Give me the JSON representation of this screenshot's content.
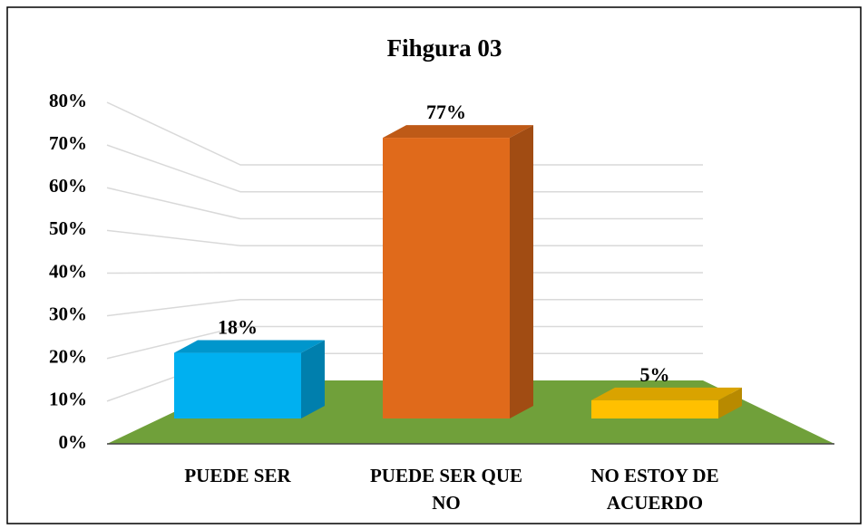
{
  "chart_data": {
    "type": "bar3d",
    "title": "Fihgura 03",
    "categories": [
      "PUEDE SER",
      "PUEDE SER QUE NO",
      "NO ESTOY DE ACUERDO"
    ],
    "values": [
      18,
      77,
      5
    ],
    "value_labels": [
      "18%",
      "77%",
      "5%"
    ],
    "colors": [
      "#00b0f0",
      "#e06a1b",
      "#ffc000"
    ],
    "floor_color": "#70a03a",
    "ylim": [
      0,
      80
    ],
    "yticks": [
      {
        "value": 0,
        "label": "0%"
      },
      {
        "value": 10,
        "label": "10%"
      },
      {
        "value": 20,
        "label": "20%"
      },
      {
        "value": 30,
        "label": "30%"
      },
      {
        "value": 40,
        "label": "40%"
      },
      {
        "value": 50,
        "label": "50%"
      },
      {
        "value": 60,
        "label": "60%"
      },
      {
        "value": 70,
        "label": "70%"
      },
      {
        "value": 80,
        "label": "80%"
      }
    ],
    "grid": true
  }
}
